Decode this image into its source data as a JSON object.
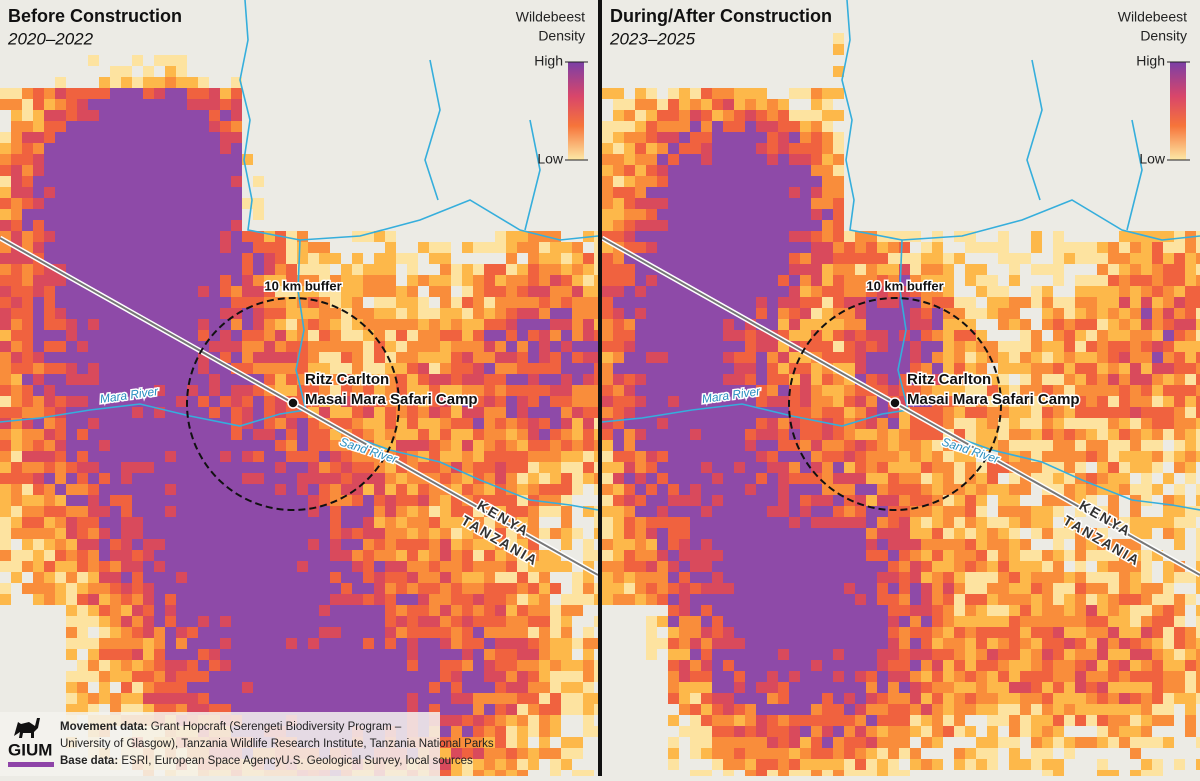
{
  "panels": [
    {
      "title": "Before Construction",
      "subtitle": "2020–2022",
      "legend": {
        "title_line1": "Wildebeest",
        "title_line2": "Density",
        "high": "High",
        "low": "Low"
      },
      "buffer_label": "10 km buffer",
      "camp_line1": "Ritz Carlton",
      "camp_line2": "Masai Mara Safari Camp",
      "river1": "Mara River",
      "river2": "Sand River",
      "country1": "KENYA",
      "country2": "TANZANIA"
    },
    {
      "title": "During/After Construction",
      "subtitle": "2023–2025",
      "legend": {
        "title_line1": "Wildebeest",
        "title_line2": "Density",
        "high": "High",
        "low": "Low"
      },
      "buffer_label": "10 km buffer",
      "camp_line1": "Ritz Carlton",
      "camp_line2": "Masai Mara Safari Camp",
      "river1": "Mara River",
      "river2": "Sand River",
      "country1": "KENYA",
      "country2": "TANZANIA"
    }
  ],
  "footer": {
    "logo": "GIUM",
    "line1_label": "Movement data:",
    "line1_text": " Grant Hopcraft (Serengeti Biodiversity Program –",
    "line2_text": "University of Glasgow), Tanzania Wildlife Research Institute, Tanzania National Parks",
    "line3_label": "Base data:",
    "line3_text": " ESRI, European Space AgencyU.S. Geological Survey, local sources"
  }
}
